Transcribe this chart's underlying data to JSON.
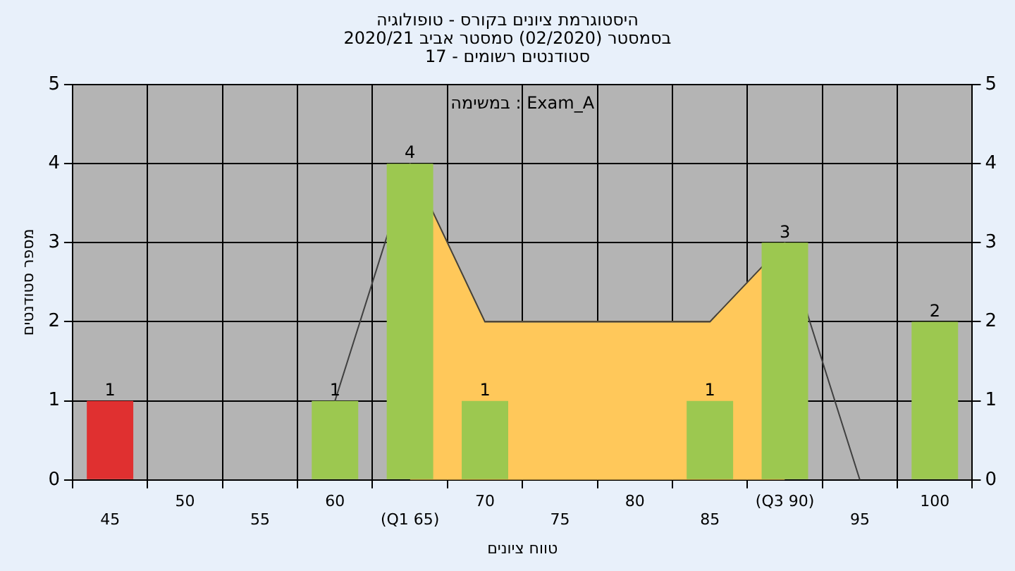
{
  "chart_data": {
    "type": "bar",
    "title": "היסטוגרמת ציונים בקורס - טופולוגיה",
    "subtitle": [
      "בסמסטר  (02/2020)  סמסטר אביב 2020/21",
      "סטודנטים רשומים - 17"
    ],
    "xlabel": "טווח ציונים",
    "ylabel": "מספר סטודנטים",
    "annotations": [
      "במשימה : Exam_A"
    ],
    "categories": [
      "45",
      "50",
      "55",
      "60",
      "(Q1 65)",
      "70",
      "75",
      "80",
      "85",
      "(Q3 90)",
      "95",
      "100"
    ],
    "series": [
      {
        "type": "area",
        "color": "#ffc85a",
        "values": [
          null,
          null,
          null,
          null,
          4,
          2,
          2,
          2,
          2,
          3,
          null,
          null
        ]
      },
      {
        "type": "line",
        "color": "#404040",
        "values": [
          null,
          null,
          null,
          1,
          4,
          2,
          2,
          2,
          2,
          3,
          0,
          null
        ]
      },
      {
        "colors": [
          "#e03030",
          "#9cc850",
          "#9cc850",
          "#9cc850",
          "#9cc850",
          "#9cc850",
          "#9cc850",
          "#9cc850",
          "#9cc850",
          "#9cc850",
          "#9cc850",
          "#9cc850"
        ],
        "values": [
          1,
          0,
          0,
          1,
          4,
          1,
          0,
          0,
          1,
          3,
          0,
          2
        ],
        "value_labels": [
          "1",
          null,
          null,
          "1",
          "4",
          "1",
          null,
          null,
          "1",
          "3",
          null,
          "2"
        ]
      }
    ],
    "ylim": [
      0,
      5
    ],
    "yticks": [
      0,
      1,
      2,
      3,
      4,
      5
    ],
    "y2lim": [
      0,
      5
    ],
    "y2ticks": [
      0,
      1,
      2,
      3,
      4,
      5
    ],
    "grid": true,
    "legend": false
  }
}
